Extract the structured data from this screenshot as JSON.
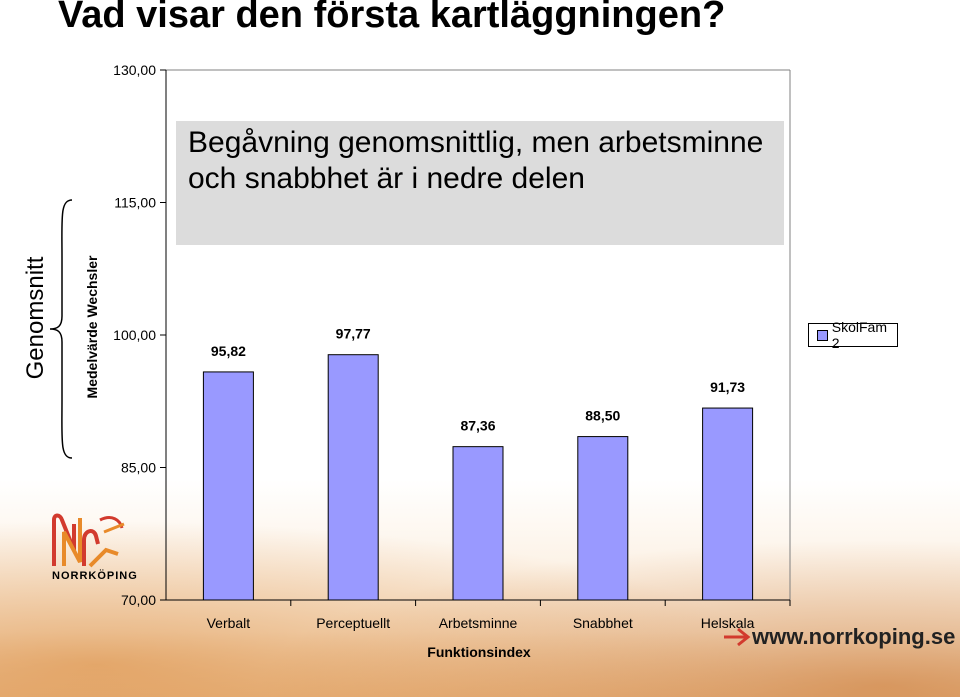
{
  "page": {
    "title": "Vad visar den första kartläggningen?",
    "side_label_outer": "Genomsnitt",
    "side_label_inner": "Medelvärde Wechsler",
    "callout": "Begåvning genomsnittlig, men arbetsminne och snabbhet är i nedre delen",
    "logo_text": "NORRKÖPING",
    "url": "www.norrkoping.se"
  },
  "colors": {
    "bar_fill": "#9999ff",
    "callout_bg": "#dcdcdc",
    "logo_red": "#d23a2e",
    "logo_orange": "#e88a2a"
  },
  "chart_data": {
    "type": "bar",
    "categories": [
      "Verbalt",
      "Perceptuellt",
      "Arbetsminne",
      "Snabbhet",
      "Helskala"
    ],
    "series": [
      {
        "name": "SkolFam 2",
        "values": [
          95.82,
          97.77,
          87.36,
          88.5,
          91.73
        ]
      }
    ],
    "value_labels": [
      "95,82",
      "97,77",
      "87,36",
      "88,50",
      "91,73"
    ],
    "y_ticks": [
      "70,00",
      "85,00",
      "100,00",
      "115,00",
      "130,00"
    ],
    "ylim": [
      70,
      130
    ],
    "xlabel": "Funktionsindex",
    "ylabel": "",
    "grid": false,
    "legend_position": "right"
  }
}
